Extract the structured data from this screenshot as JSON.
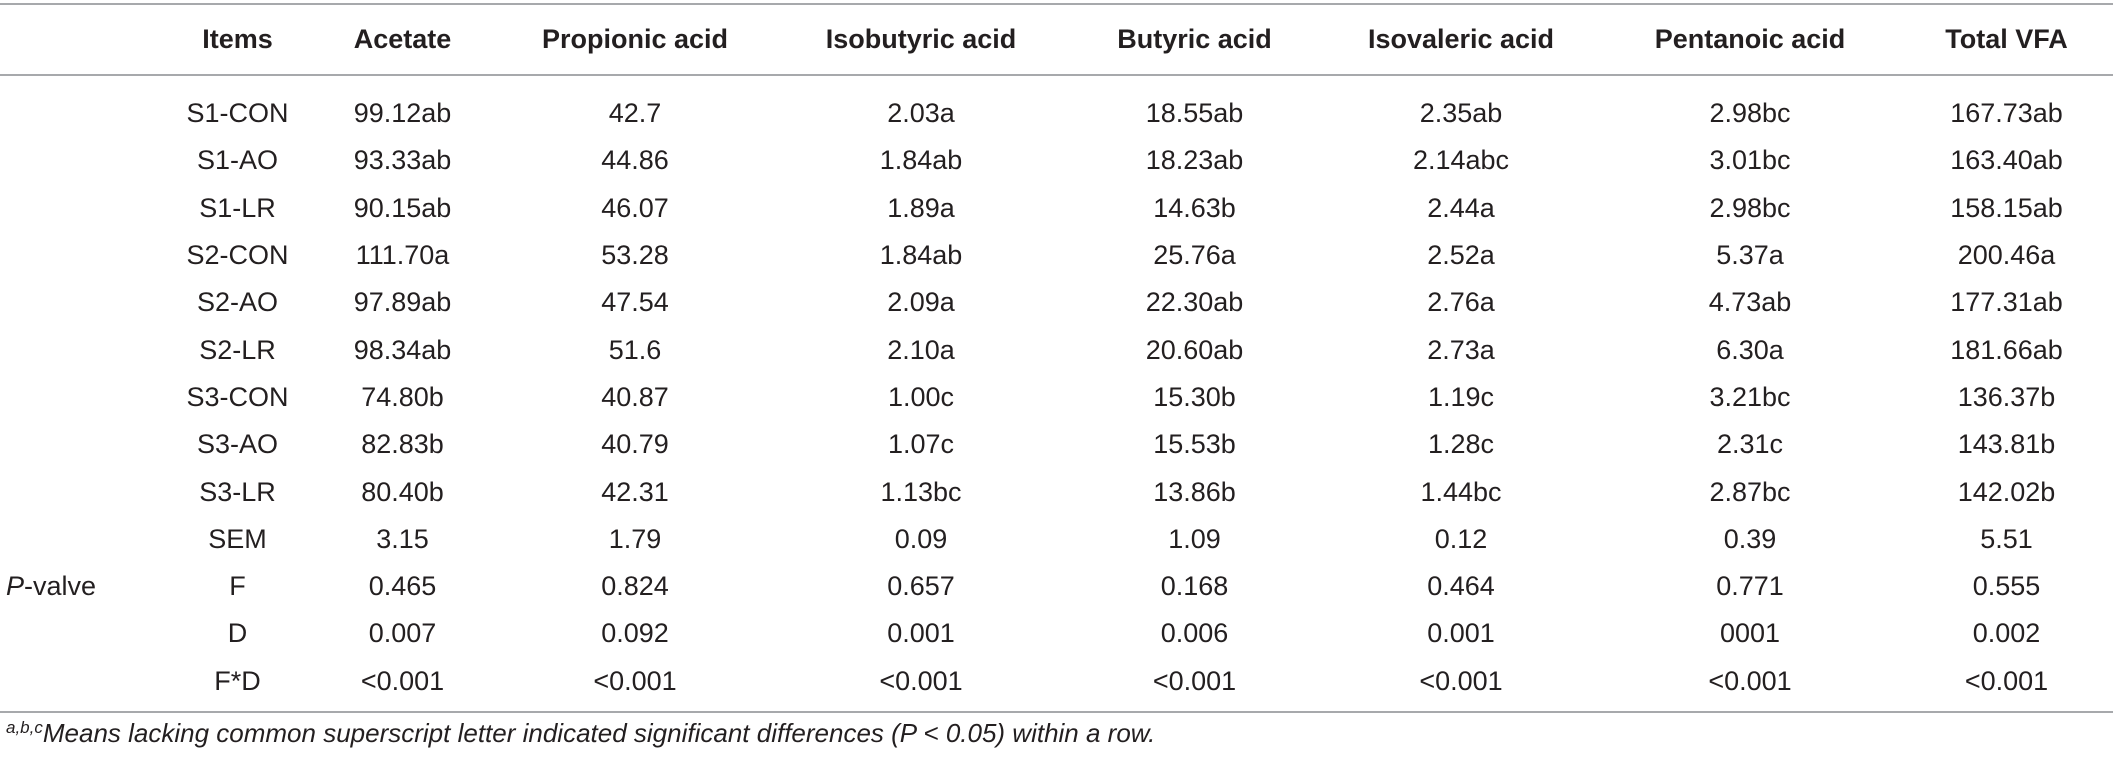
{
  "table": {
    "headers": [
      "Items",
      "Acetate",
      "Propionic acid",
      "Isobutyric acid",
      "Butyric acid",
      "Isovaleric acid",
      "Pentanoic acid",
      "Total VFA"
    ],
    "rows": [
      {
        "group": "",
        "cells": [
          "S1-CON",
          "99.12ab",
          "42.7",
          "2.03a",
          "18.55ab",
          "2.35ab",
          "2.98bc",
          "167.73ab"
        ]
      },
      {
        "group": "",
        "cells": [
          "S1-AO",
          "93.33ab",
          "44.86",
          "1.84ab",
          "18.23ab",
          "2.14abc",
          "3.01bc",
          "163.40ab"
        ]
      },
      {
        "group": "",
        "cells": [
          "S1-LR",
          "90.15ab",
          "46.07",
          "1.89a",
          "14.63b",
          "2.44a",
          "2.98bc",
          "158.15ab"
        ]
      },
      {
        "group": "",
        "cells": [
          "S2-CON",
          "111.70a",
          "53.28",
          "1.84ab",
          "25.76a",
          "2.52a",
          "5.37a",
          "200.46a"
        ]
      },
      {
        "group": "",
        "cells": [
          "S2-AO",
          "97.89ab",
          "47.54",
          "2.09a",
          "22.30ab",
          "2.76a",
          "4.73ab",
          "177.31ab"
        ]
      },
      {
        "group": "",
        "cells": [
          "S2-LR",
          "98.34ab",
          "51.6",
          "2.10a",
          "20.60ab",
          "2.73a",
          "6.30a",
          "181.66ab"
        ]
      },
      {
        "group": "",
        "cells": [
          "S3-CON",
          "74.80b",
          "40.87",
          "1.00c",
          "15.30b",
          "1.19c",
          "3.21bc",
          "136.37b"
        ]
      },
      {
        "group": "",
        "cells": [
          "S3-AO",
          "82.83b",
          "40.79",
          "1.07c",
          "15.53b",
          "1.28c",
          "2.31c",
          "143.81b"
        ]
      },
      {
        "group": "",
        "cells": [
          "S3-LR",
          "80.40b",
          "42.31",
          "1.13bc",
          "13.86b",
          "1.44bc",
          "2.87bc",
          "142.02b"
        ]
      },
      {
        "group": "",
        "cells": [
          "SEM",
          "3.15",
          "1.79",
          "0.09",
          "1.09",
          "0.12",
          "0.39",
          "5.51"
        ]
      },
      {
        "group": "P-valve",
        "cells": [
          "F",
          "0.465",
          "0.824",
          "0.657",
          "0.168",
          "0.464",
          "0.771",
          "0.555"
        ]
      },
      {
        "group": "",
        "cells": [
          "D",
          "0.007",
          "0.092",
          "0.001",
          "0.006",
          "0.001",
          "0001",
          "0.002"
        ]
      },
      {
        "group": "",
        "cells": [
          "F*D",
          "<0.001",
          "<0.001",
          "<0.001",
          "<0.001",
          "<0.001",
          "<0.001",
          "<0.001"
        ]
      }
    ]
  },
  "footnote": {
    "superscript": "a,b,c",
    "text": "Means lacking common superscript letter indicated significant differences (P < 0.05) within a row."
  }
}
